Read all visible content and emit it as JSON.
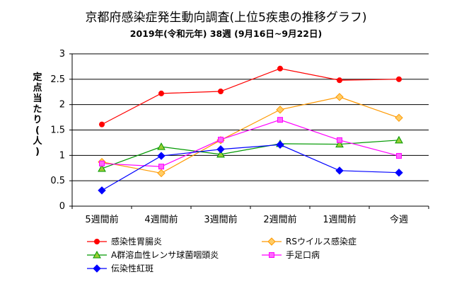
{
  "title": "京都府感染症発生動向調査(上位5疾患の推移グラフ)",
  "subtitle": "2019年(令和元年) 38週 (9月16日~9月22日)",
  "ylabel": "定点当たり(人)",
  "colors": {
    "s1": "#ff0000",
    "s2": "#ff9900",
    "s3": "#009900",
    "s4": "#ff00ff",
    "s5": "#0000ff",
    "fill1": "#ff0000",
    "fill2": "#ffcc66",
    "fill3": "#99cc33",
    "fill4": "#ff66ff",
    "fill5": "#0000ff"
  },
  "chart_data": {
    "type": "line",
    "categories": [
      "5週間前",
      "4週間前",
      "3週間前",
      "2週間前",
      "1週間前",
      "今週"
    ],
    "ylim": [
      0,
      3
    ],
    "yticks": [
      "0",
      "0.5",
      "1",
      "1.5",
      "2",
      "2.5",
      "3"
    ],
    "grid": true,
    "legend_position": "bottom",
    "series": [
      {
        "name": "感染性胃腸炎",
        "values": [
          1.61,
          2.22,
          2.26,
          2.71,
          2.48,
          2.5
        ],
        "marker": "circle"
      },
      {
        "name": "RSウイルス感染症",
        "values": [
          0.87,
          0.65,
          1.3,
          1.9,
          2.15,
          1.74
        ],
        "marker": "diamond"
      },
      {
        "name": "A群溶血性レンサ球菌咽頭炎",
        "values": [
          0.74,
          1.17,
          1.02,
          1.23,
          1.22,
          1.3
        ],
        "marker": "triangle"
      },
      {
        "name": "手足口病",
        "values": [
          0.84,
          0.78,
          1.31,
          1.7,
          1.3,
          0.99
        ],
        "marker": "square"
      },
      {
        "name": "伝染性紅斑",
        "values": [
          0.31,
          0.99,
          1.12,
          1.21,
          0.7,
          0.66
        ],
        "marker": "diamond"
      }
    ]
  }
}
